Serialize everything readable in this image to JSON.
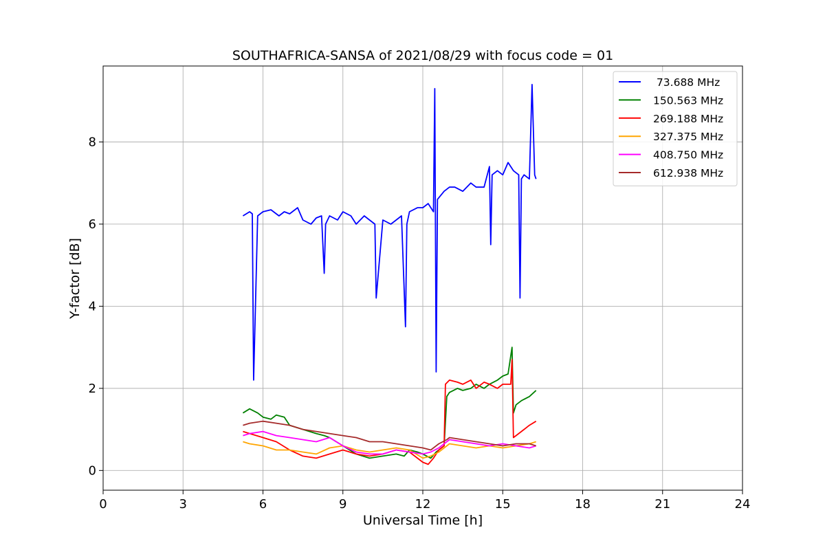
{
  "chart_data": {
    "type": "line",
    "title": "SOUTHAFRICA-SANSA of 2021/08/29 with focus code = 01",
    "xlabel": "Universal Time [h]",
    "ylabel": "Y-factor [dB]",
    "xlim": [
      0,
      24
    ],
    "ylim": [
      -0.48,
      9.85
    ],
    "xticks": [
      0,
      3,
      6,
      9,
      12,
      15,
      18,
      21,
      24
    ],
    "yticks": [
      0,
      2,
      4,
      6,
      8
    ],
    "grid": true,
    "legend_position": "top-right",
    "series": [
      {
        "name": " 73.688 MHz",
        "color": "#0000ff",
        "x": [
          5.25,
          5.5,
          5.6,
          5.65,
          5.8,
          6.0,
          6.3,
          6.6,
          6.8,
          7.0,
          7.3,
          7.5,
          7.8,
          8.0,
          8.2,
          8.3,
          8.35,
          8.5,
          8.8,
          9.0,
          9.3,
          9.5,
          9.8,
          10.0,
          10.2,
          10.25,
          10.5,
          10.8,
          11.0,
          11.2,
          11.35,
          11.4,
          11.5,
          11.8,
          12.0,
          12.2,
          12.4,
          12.45,
          12.5,
          12.55,
          12.8,
          13.0,
          13.2,
          13.5,
          13.8,
          14.0,
          14.3,
          14.5,
          14.55,
          14.6,
          14.8,
          15.0,
          15.2,
          15.4,
          15.6,
          15.65,
          15.7,
          15.8,
          16.0,
          16.1,
          16.2,
          16.25
        ],
        "y": [
          6.2,
          6.3,
          6.25,
          2.2,
          6.2,
          6.3,
          6.35,
          6.2,
          6.3,
          6.25,
          6.4,
          6.1,
          6.0,
          6.15,
          6.2,
          4.8,
          6.0,
          6.2,
          6.1,
          6.3,
          6.2,
          6.0,
          6.2,
          6.1,
          6.0,
          4.2,
          6.1,
          6.0,
          6.1,
          6.2,
          3.5,
          6.0,
          6.3,
          6.4,
          6.4,
          6.5,
          6.3,
          9.3,
          2.4,
          6.6,
          6.8,
          6.9,
          6.9,
          6.8,
          7.0,
          6.9,
          6.9,
          7.4,
          5.5,
          7.2,
          7.3,
          7.2,
          7.5,
          7.3,
          7.2,
          4.2,
          7.1,
          7.2,
          7.1,
          9.4,
          7.2,
          7.1
        ]
      },
      {
        "name": "150.563 MHz",
        "color": "#008000",
        "x": [
          5.25,
          5.5,
          5.8,
          6.0,
          6.3,
          6.5,
          6.8,
          7.0,
          7.5,
          8.0,
          8.3,
          8.5,
          9.0,
          9.5,
          10.0,
          10.5,
          11.0,
          11.3,
          11.5,
          11.8,
          12.0,
          12.3,
          12.5,
          12.8,
          12.9,
          13.0,
          13.3,
          13.5,
          13.8,
          14.0,
          14.3,
          14.5,
          14.8,
          15.0,
          15.2,
          15.35,
          15.4,
          15.5,
          15.7,
          16.0,
          16.25
        ],
        "y": [
          1.4,
          1.5,
          1.4,
          1.3,
          1.25,
          1.35,
          1.3,
          1.1,
          1.0,
          0.9,
          0.85,
          0.8,
          0.6,
          0.4,
          0.3,
          0.35,
          0.4,
          0.35,
          0.5,
          0.45,
          0.4,
          0.3,
          0.45,
          0.6,
          1.8,
          1.9,
          2.0,
          1.95,
          2.0,
          2.1,
          2.0,
          2.1,
          2.2,
          2.3,
          2.35,
          3.0,
          1.4,
          1.6,
          1.7,
          1.8,
          1.95
        ]
      },
      {
        "name": "269.188 MHz",
        "color": "#ff0000",
        "x": [
          5.25,
          5.5,
          6.0,
          6.5,
          7.0,
          7.5,
          8.0,
          8.5,
          9.0,
          9.5,
          10.0,
          10.5,
          11.0,
          11.5,
          12.0,
          12.2,
          12.4,
          12.6,
          12.8,
          12.85,
          13.0,
          13.3,
          13.5,
          13.8,
          14.0,
          14.3,
          14.5,
          14.8,
          15.0,
          15.3,
          15.35,
          15.4,
          15.5,
          15.8,
          16.0,
          16.25
        ],
        "y": [
          0.95,
          0.9,
          0.8,
          0.7,
          0.5,
          0.35,
          0.3,
          0.4,
          0.5,
          0.4,
          0.35,
          0.4,
          0.5,
          0.45,
          0.2,
          0.15,
          0.3,
          0.5,
          0.6,
          2.1,
          2.2,
          2.15,
          2.1,
          2.2,
          2.0,
          2.15,
          2.1,
          2.0,
          2.1,
          2.1,
          2.7,
          0.8,
          0.85,
          1.0,
          1.1,
          1.2
        ]
      },
      {
        "name": "327.375 MHz",
        "color": "#ffa500",
        "x": [
          5.25,
          5.5,
          6.0,
          6.5,
          7.0,
          7.5,
          8.0,
          8.5,
          9.0,
          9.5,
          10.0,
          10.5,
          11.0,
          11.5,
          12.0,
          12.3,
          12.6,
          12.9,
          13.0,
          13.5,
          14.0,
          14.5,
          15.0,
          15.5,
          16.0,
          16.25
        ],
        "y": [
          0.7,
          0.65,
          0.6,
          0.5,
          0.5,
          0.45,
          0.4,
          0.55,
          0.6,
          0.5,
          0.45,
          0.5,
          0.55,
          0.5,
          0.3,
          0.35,
          0.45,
          0.6,
          0.65,
          0.6,
          0.55,
          0.6,
          0.55,
          0.6,
          0.65,
          0.7
        ]
      },
      {
        "name": "408.750 MHz",
        "color": "#ff00ff",
        "x": [
          5.25,
          5.5,
          6.0,
          6.5,
          7.0,
          7.5,
          8.0,
          8.5,
          9.0,
          9.5,
          10.0,
          10.5,
          11.0,
          11.5,
          12.0,
          12.3,
          12.6,
          12.9,
          13.0,
          13.5,
          14.0,
          14.5,
          15.0,
          15.5,
          16.0,
          16.25
        ],
        "y": [
          0.85,
          0.9,
          0.95,
          0.85,
          0.8,
          0.75,
          0.7,
          0.8,
          0.6,
          0.45,
          0.4,
          0.4,
          0.5,
          0.45,
          0.4,
          0.45,
          0.55,
          0.7,
          0.75,
          0.7,
          0.65,
          0.6,
          0.65,
          0.6,
          0.55,
          0.6
        ]
      },
      {
        "name": "612.938 MHz",
        "color": "#a52a2a",
        "x": [
          5.25,
          5.5,
          6.0,
          6.5,
          7.0,
          7.5,
          8.0,
          8.5,
          9.0,
          9.5,
          10.0,
          10.5,
          11.0,
          11.5,
          12.0,
          12.3,
          12.6,
          12.9,
          13.0,
          13.5,
          14.0,
          14.5,
          15.0,
          15.5,
          16.0,
          16.25
        ],
        "y": [
          1.1,
          1.15,
          1.2,
          1.15,
          1.1,
          1.0,
          0.95,
          0.9,
          0.85,
          0.8,
          0.7,
          0.7,
          0.65,
          0.6,
          0.55,
          0.5,
          0.65,
          0.75,
          0.8,
          0.75,
          0.7,
          0.65,
          0.6,
          0.65,
          0.65,
          0.6
        ]
      }
    ]
  }
}
